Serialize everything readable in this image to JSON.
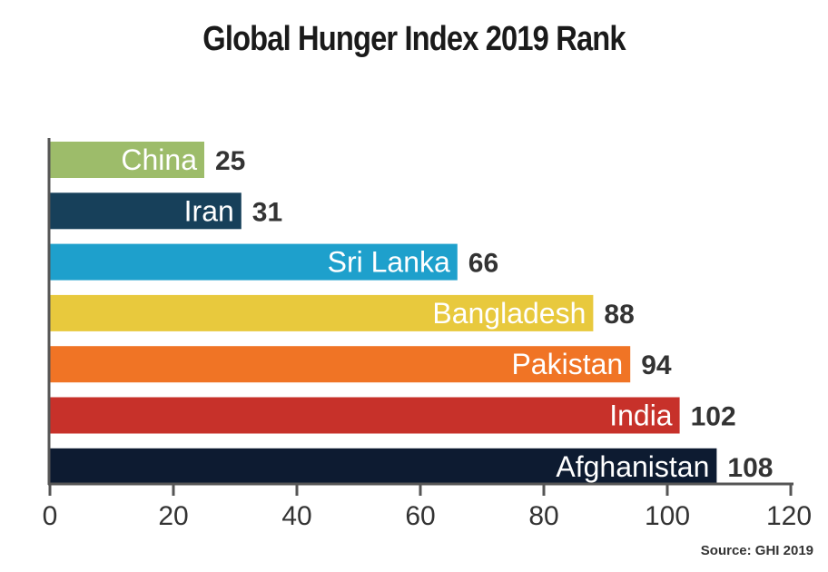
{
  "chart_data": {
    "type": "bar",
    "orientation": "horizontal",
    "title": "Global Hunger Index 2019 Rank",
    "categories": [
      "China",
      "Iran",
      "Sri Lanka",
      "Bangladesh",
      "Pakistan",
      "India",
      "Afghanistan"
    ],
    "values": [
      25,
      31,
      66,
      88,
      94,
      102,
      108
    ],
    "value_labels": [
      "25",
      "31",
      "66",
      "88",
      "94",
      "102",
      "108"
    ],
    "colors": [
      "#9dbc6a",
      "#17405a",
      "#1ea0cc",
      "#e8c93d",
      "#f07425",
      "#c7312a",
      "#0d1b31"
    ],
    "xlim": [
      0,
      120
    ],
    "xticks": [
      0,
      20,
      40,
      60,
      80,
      100,
      120
    ],
    "xtick_labels": [
      "0",
      "20",
      "40",
      "60",
      "80",
      "100",
      "120"
    ],
    "xlabel": "",
    "ylabel": "",
    "grid": false,
    "legend": "none"
  },
  "source": "Source: GHI 2019"
}
